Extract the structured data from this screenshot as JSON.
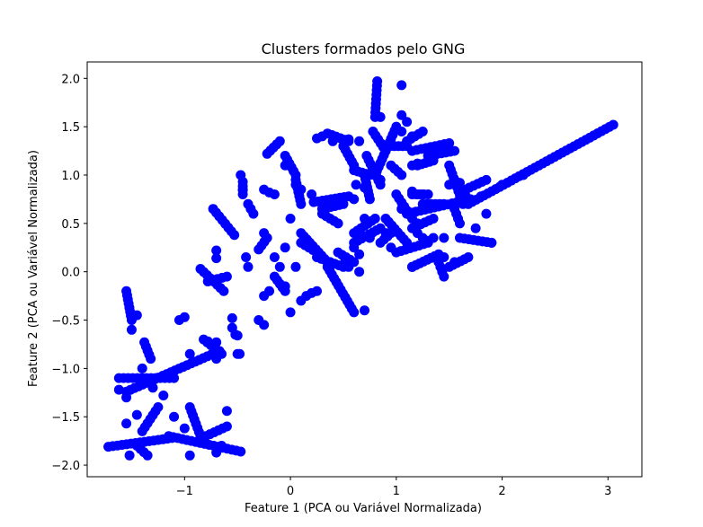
{
  "chart_data": {
    "type": "scatter",
    "title": "Clusters formados pelo GNG",
    "xlabel": "Feature 1 (PCA ou Variável Normalizada)",
    "ylabel": "Feature 2 (PCA ou Variável Normalizada)",
    "xlim": [
      -1.92,
      3.32
    ],
    "ylim": [
      -2.12,
      2.17
    ],
    "xticks": [
      -1,
      0,
      1,
      2,
      3
    ],
    "yticks": [
      -2.0,
      -1.5,
      -1.0,
      -0.5,
      0.0,
      0.5,
      1.0,
      1.5,
      2.0
    ],
    "xtick_labels": [
      "−1",
      "0",
      "1",
      "2",
      "3"
    ],
    "ytick_labels": [
      "−2.0",
      "−1.5",
      "−1.0",
      "−0.5",
      "0.0",
      "0.5",
      "1.0",
      "1.5",
      "2.0"
    ],
    "grid": false,
    "point_color": "#0000ff",
    "edge_color": "#000000",
    "segments": [
      [
        [
          -1.72,
          -1.81
        ],
        [
          -1.12,
          -1.72
        ]
      ],
      [
        [
          -1.15,
          -1.7
        ],
        [
          -0.47,
          -1.86
        ]
      ],
      [
        [
          -1.55,
          -1.24
        ],
        [
          -0.67,
          -0.82
        ]
      ],
      [
        [
          -1.55,
          -0.2
        ],
        [
          -1.5,
          -0.5
        ]
      ],
      [
        [
          -1.62,
          -1.1
        ],
        [
          -1.1,
          -1.1
        ]
      ],
      [
        [
          -1.4,
          -1.65
        ],
        [
          -1.25,
          -1.4
        ]
      ],
      [
        [
          -0.8,
          -1.7
        ],
        [
          -0.6,
          -1.6
        ]
      ],
      [
        [
          -1.38,
          -0.73
        ],
        [
          -1.32,
          -0.9
        ]
      ],
      [
        [
          -0.95,
          -1.4
        ],
        [
          -0.85,
          -1.7
        ]
      ],
      [
        [
          -1.45,
          -1.8
        ],
        [
          -1.35,
          -1.9
        ]
      ],
      [
        [
          -0.73,
          0.65
        ],
        [
          -0.53,
          0.38
        ]
      ],
      [
        [
          -0.85,
          0.03
        ],
        [
          -0.63,
          -0.2
        ]
      ],
      [
        [
          -0.78,
          -0.1
        ],
        [
          -0.6,
          -0.05
        ]
      ],
      [
        [
          -0.82,
          -0.7
        ],
        [
          -0.65,
          -0.85
        ]
      ],
      [
        [
          -0.45,
          0.93
        ],
        [
          -0.45,
          0.8
        ]
      ],
      [
        [
          -0.4,
          0.7
        ],
        [
          -0.35,
          0.6
        ]
      ],
      [
        [
          -0.3,
          0.23
        ],
        [
          -0.22,
          0.35
        ]
      ],
      [
        [
          -0.15,
          -0.05
        ],
        [
          -0.05,
          -0.2
        ]
      ],
      [
        [
          0.05,
          0.95
        ],
        [
          0.1,
          0.7
        ]
      ],
      [
        [
          -0.22,
          1.22
        ],
        [
          -0.1,
          1.35
        ]
      ],
      [
        [
          -0.05,
          1.2
        ],
        [
          0.05,
          1.0
        ]
      ],
      [
        [
          0.1,
          0.4
        ],
        [
          0.35,
          0.1
        ]
      ],
      [
        [
          0.35,
          0.05
        ],
        [
          0.6,
          -0.42
        ]
      ],
      [
        [
          0.25,
          0.15
        ],
        [
          0.5,
          0.05
        ]
      ],
      [
        [
          0.1,
          0.3
        ],
        [
          0.25,
          0.2
        ]
      ],
      [
        [
          0.22,
          0.72
        ],
        [
          0.55,
          0.78
        ]
      ],
      [
        [
          0.3,
          0.65
        ],
        [
          0.5,
          0.7
        ]
      ],
      [
        [
          0.3,
          0.6
        ],
        [
          0.45,
          0.5
        ]
      ],
      [
        [
          0.45,
          0.2
        ],
        [
          0.6,
          0.1
        ]
      ],
      [
        [
          0.6,
          0.3
        ],
        [
          0.85,
          0.45
        ]
      ],
      [
        [
          0.6,
          0.4
        ],
        [
          0.8,
          0.55
        ]
      ],
      [
        [
          0.35,
          1.43
        ],
        [
          0.55,
          1.35
        ]
      ],
      [
        [
          0.5,
          1.3
        ],
        [
          0.6,
          1.1
        ]
      ],
      [
        [
          0.6,
          1.05
        ],
        [
          0.75,
          1.0
        ]
      ],
      [
        [
          0.7,
          1.0
        ],
        [
          0.75,
          0.75
        ]
      ],
      [
        [
          0.72,
          1.2
        ],
        [
          0.85,
          0.9
        ]
      ],
      [
        [
          0.8,
          1.0
        ],
        [
          1.0,
          1.5
        ]
      ],
      [
        [
          0.82,
          1.97
        ],
        [
          0.8,
          1.6
        ]
      ],
      [
        [
          0.78,
          1.45
        ],
        [
          0.9,
          1.25
        ]
      ],
      [
        [
          0.9,
          1.3
        ],
        [
          1.1,
          1.3
        ]
      ],
      [
        [
          0.95,
          1.1
        ],
        [
          1.05,
          1.0
        ]
      ],
      [
        [
          1.0,
          0.8
        ],
        [
          1.15,
          0.55
        ]
      ],
      [
        [
          0.9,
          0.55
        ],
        [
          1.1,
          0.3
        ]
      ],
      [
        [
          0.85,
          0.3
        ],
        [
          0.95,
          0.4
        ]
      ],
      [
        [
          1.1,
          1.35
        ],
        [
          1.25,
          1.45
        ]
      ],
      [
        [
          1.15,
          1.25
        ],
        [
          1.5,
          1.33
        ]
      ],
      [
        [
          1.2,
          1.1
        ],
        [
          1.35,
          1.15
        ]
      ],
      [
        [
          1.3,
          1.2
        ],
        [
          1.55,
          1.25
        ]
      ],
      [
        [
          1.15,
          0.8
        ],
        [
          1.3,
          0.8
        ]
      ],
      [
        [
          1.25,
          0.7
        ],
        [
          1.45,
          0.7
        ]
      ],
      [
        [
          1.5,
          1.1
        ],
        [
          1.63,
          0.7
        ]
      ],
      [
        [
          1.55,
          0.65
        ],
        [
          1.6,
          0.5
        ]
      ],
      [
        [
          1.6,
          0.35
        ],
        [
          1.9,
          0.3
        ]
      ],
      [
        [
          1.1,
          0.6
        ],
        [
          1.7,
          0.75
        ]
      ],
      [
        [
          1.15,
          0.45
        ],
        [
          1.35,
          0.55
        ]
      ],
      [
        [
          1.15,
          0.05
        ],
        [
          1.4,
          0.18
        ]
      ],
      [
        [
          1.4,
          0.1
        ],
        [
          1.45,
          -0.05
        ]
      ],
      [
        [
          1.5,
          0.05
        ],
        [
          1.68,
          0.15
        ]
      ],
      [
        [
          1.68,
          0.7
        ],
        [
          3.05,
          1.52
        ]
      ],
      [
        [
          1.65,
          0.85
        ],
        [
          1.85,
          0.95
        ]
      ],
      [
        [
          1.0,
          0.2
        ],
        [
          1.3,
          0.3
        ]
      ]
    ],
    "points": [
      [
        -1.52,
        -1.9
      ],
      [
        -1.55,
        -1.57
      ],
      [
        -1.45,
        -1.48
      ],
      [
        -1.55,
        -1.3
      ],
      [
        -1.62,
        -1.22
      ],
      [
        -1.5,
        -0.6
      ],
      [
        -1.45,
        -0.45
      ],
      [
        -1.4,
        -1.0
      ],
      [
        -1.3,
        -1.2
      ],
      [
        -1.2,
        -1.28
      ],
      [
        -1.1,
        -1.5
      ],
      [
        -1.0,
        -1.62
      ],
      [
        -0.95,
        -1.9
      ],
      [
        -1.05,
        -0.5
      ],
      [
        -1.0,
        -0.47
      ],
      [
        -0.95,
        -0.85
      ],
      [
        -0.78,
        -0.72
      ],
      [
        -0.7,
        -0.9
      ],
      [
        -0.65,
        -1.8
      ],
      [
        -0.7,
        -1.87
      ],
      [
        -0.7,
        -0.73
      ],
      [
        -0.6,
        -1.44
      ],
      [
        -0.55,
        -0.58
      ],
      [
        -0.5,
        -0.85
      ],
      [
        -0.48,
        -0.85
      ],
      [
        -0.7,
        0.22
      ],
      [
        -0.7,
        0.14
      ],
      [
        -0.55,
        -0.48
      ],
      [
        -0.52,
        -0.65
      ],
      [
        -0.5,
        -0.66
      ],
      [
        -0.47,
        1.0
      ],
      [
        -0.45,
        0.85
      ],
      [
        -0.4,
        0.05
      ],
      [
        -0.42,
        0.15
      ],
      [
        -0.3,
        -0.5
      ],
      [
        -0.25,
        -0.55
      ],
      [
        -0.25,
        0.4
      ],
      [
        -0.25,
        -0.25
      ],
      [
        -0.2,
        -0.2
      ],
      [
        -0.15,
        0.15
      ],
      [
        -0.1,
        0.05
      ],
      [
        -0.05,
        -0.15
      ],
      [
        0.0,
        -0.42
      ],
      [
        -0.05,
        0.25
      ],
      [
        0.0,
        0.55
      ],
      [
        0.05,
        0.05
      ],
      [
        0.1,
        -0.3
      ],
      [
        0.15,
        -0.25
      ],
      [
        0.2,
        -0.22
      ],
      [
        0.25,
        -0.2
      ],
      [
        -0.25,
        0.85
      ],
      [
        -0.2,
        0.82
      ],
      [
        -0.15,
        0.8
      ],
      [
        -0.05,
        1.1
      ],
      [
        0.05,
        0.9
      ],
      [
        0.1,
        0.85
      ],
      [
        0.2,
        0.8
      ],
      [
        0.25,
        1.38
      ],
      [
        0.3,
        1.4
      ],
      [
        0.4,
        1.35
      ],
      [
        0.5,
        1.3
      ],
      [
        0.55,
        1.37
      ],
      [
        0.65,
        1.35
      ],
      [
        0.62,
        0.9
      ],
      [
        0.7,
        0.87
      ],
      [
        0.85,
        0.95
      ],
      [
        0.6,
        0.75
      ],
      [
        0.7,
        0.55
      ],
      [
        0.75,
        0.35
      ],
      [
        0.6,
        0.25
      ],
      [
        0.65,
        0.18
      ],
      [
        0.52,
        0.12
      ],
      [
        0.55,
        0.05
      ],
      [
        0.65,
        0.0
      ],
      [
        0.7,
        -0.4
      ],
      [
        0.85,
        1.6
      ],
      [
        1.05,
        1.62
      ],
      [
        1.1,
        1.55
      ],
      [
        1.05,
        1.93
      ],
      [
        1.05,
        1.45
      ],
      [
        1.15,
        1.4
      ],
      [
        1.15,
        1.1
      ],
      [
        1.2,
        1.12
      ],
      [
        1.15,
        0.83
      ],
      [
        1.2,
        0.8
      ],
      [
        1.25,
        0.8
      ],
      [
        0.95,
        0.25
      ],
      [
        0.9,
        0.4
      ],
      [
        1.05,
        0.65
      ],
      [
        1.1,
        0.6
      ],
      [
        1.2,
        0.5
      ],
      [
        1.2,
        0.4
      ],
      [
        1.25,
        0.35
      ],
      [
        1.3,
        0.32
      ],
      [
        1.15,
        0.05
      ],
      [
        1.35,
        0.35
      ],
      [
        1.45,
        0.35
      ],
      [
        1.4,
        0.1
      ],
      [
        1.45,
        0.15
      ],
      [
        1.55,
        0.1
      ],
      [
        1.5,
        0.9
      ],
      [
        1.55,
        0.95
      ],
      [
        1.6,
        0.92
      ],
      [
        1.65,
        0.8
      ],
      [
        1.8,
        0.78
      ],
      [
        1.85,
        0.6
      ],
      [
        1.9,
        0.3
      ],
      [
        1.75,
        0.45
      ],
      [
        2.0,
        0.9
      ],
      [
        2.2,
        1.0
      ]
    ]
  }
}
